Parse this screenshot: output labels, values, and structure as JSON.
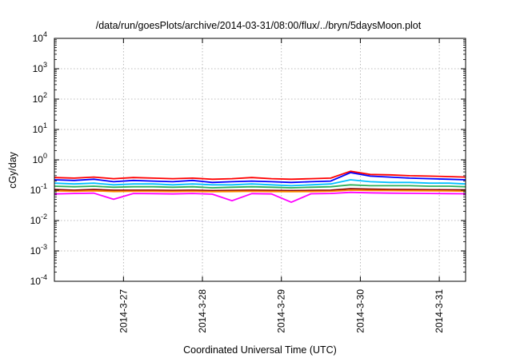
{
  "chart_data": {
    "type": "line",
    "title": "/data/run/goesPlots/archive/2014-03-31/08:00/flux/../bryn/5daysMoon.plot",
    "xlabel": "Coordinated Universal Time (UTC)",
    "ylabel": "cGy/day",
    "y_scale": "log",
    "ylim": [
      0.0001,
      10000
    ],
    "xlim": [
      "2014-03-26 03:00",
      "2014-03-31 08:00"
    ],
    "grid": true,
    "legend": "none",
    "y_ticks": [
      {
        "value": 0.0001,
        "base": "10",
        "exp": "-4"
      },
      {
        "value": 0.001,
        "base": "10",
        "exp": "-3"
      },
      {
        "value": 0.01,
        "base": "10",
        "exp": "-2"
      },
      {
        "value": 0.1,
        "base": "10",
        "exp": "-1"
      },
      {
        "value": 1,
        "base": "10",
        "exp": "0"
      },
      {
        "value": 10,
        "base": "10",
        "exp": "1"
      },
      {
        "value": 100,
        "base": "10",
        "exp": "2"
      },
      {
        "value": 1000,
        "base": "10",
        "exp": "3"
      },
      {
        "value": 10000,
        "base": "10",
        "exp": "4"
      }
    ],
    "x_ticks": [
      {
        "value": "2014-03-27 00:00",
        "label": "2014-3-27"
      },
      {
        "value": "2014-03-28 00:00",
        "label": "2014-3-28"
      },
      {
        "value": "2014-03-29 00:00",
        "label": "2014-3-29"
      },
      {
        "value": "2014-03-30 00:00",
        "label": "2014-3-30"
      },
      {
        "value": "2014-03-31 00:00",
        "label": "2014-3-31"
      }
    ],
    "x": [
      "2014-03-26 03:00",
      "2014-03-26 09:00",
      "2014-03-26 15:00",
      "2014-03-26 21:00",
      "2014-03-27 03:00",
      "2014-03-27 09:00",
      "2014-03-27 15:00",
      "2014-03-27 21:00",
      "2014-03-28 03:00",
      "2014-03-28 09:00",
      "2014-03-28 15:00",
      "2014-03-28 21:00",
      "2014-03-29 03:00",
      "2014-03-29 09:00",
      "2014-03-29 15:00",
      "2014-03-29 21:00",
      "2014-03-30 03:00",
      "2014-03-30 09:00",
      "2014-03-30 15:00",
      "2014-03-30 21:00",
      "2014-03-31 03:00",
      "2014-03-31 08:00"
    ],
    "series": [
      {
        "color": "#ff0000",
        "values": [
          0.26,
          0.25,
          0.27,
          0.24,
          0.26,
          0.25,
          0.24,
          0.25,
          0.23,
          0.24,
          0.26,
          0.24,
          0.23,
          0.24,
          0.25,
          0.42,
          0.33,
          0.32,
          0.3,
          0.29,
          0.28,
          0.27
        ]
      },
      {
        "color": "#0000ff",
        "values": [
          0.22,
          0.21,
          0.23,
          0.19,
          0.21,
          0.2,
          0.19,
          0.21,
          0.18,
          0.19,
          0.2,
          0.19,
          0.18,
          0.19,
          0.2,
          0.38,
          0.29,
          0.27,
          0.25,
          0.24,
          0.23,
          0.22
        ]
      },
      {
        "color": "#00bfff",
        "values": [
          0.17,
          0.16,
          0.17,
          0.15,
          0.16,
          0.16,
          0.15,
          0.16,
          0.15,
          0.15,
          0.16,
          0.15,
          0.14,
          0.15,
          0.16,
          0.22,
          0.19,
          0.18,
          0.18,
          0.17,
          0.17,
          0.16
        ]
      },
      {
        "color": "#2cb05a",
        "values": [
          0.135,
          0.13,
          0.135,
          0.125,
          0.13,
          0.13,
          0.125,
          0.13,
          0.12,
          0.125,
          0.13,
          0.125,
          0.12,
          0.125,
          0.13,
          0.15,
          0.14,
          0.14,
          0.14,
          0.135,
          0.135,
          0.13
        ]
      },
      {
        "color": "#8b0000",
        "values": [
          0.105,
          0.1,
          0.105,
          0.1,
          0.1,
          0.1,
          0.098,
          0.1,
          0.097,
          0.098,
          0.1,
          0.098,
          0.097,
          0.098,
          0.1,
          0.112,
          0.108,
          0.106,
          0.105,
          0.104,
          0.103,
          0.102
        ]
      },
      {
        "color": "#ff8c00",
        "values": [
          0.095,
          0.092,
          0.095,
          0.09,
          0.092,
          0.092,
          0.09,
          0.092,
          0.089,
          0.09,
          0.092,
          0.09,
          0.089,
          0.09,
          0.092,
          0.1,
          0.098,
          0.097,
          0.096,
          0.095,
          0.094,
          0.093
        ]
      },
      {
        "color": "#ff00ff",
        "values": [
          0.075,
          0.078,
          0.08,
          0.05,
          0.078,
          0.077,
          0.075,
          0.078,
          0.074,
          0.045,
          0.077,
          0.075,
          0.04,
          0.076,
          0.078,
          0.085,
          0.082,
          0.08,
          0.079,
          0.078,
          0.077,
          0.076
        ]
      }
    ]
  }
}
